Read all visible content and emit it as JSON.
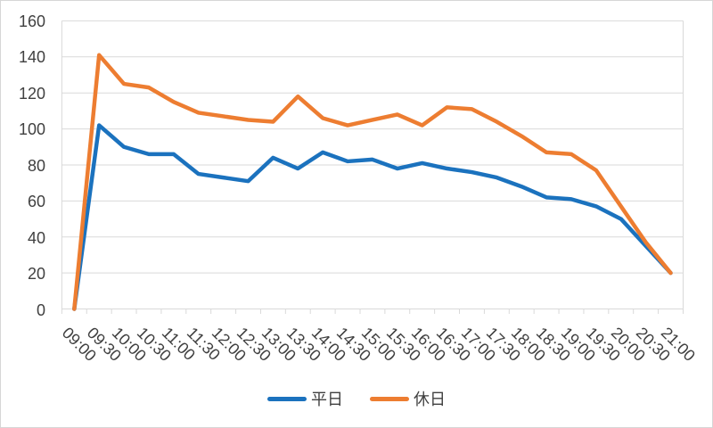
{
  "chart_data": {
    "type": "line",
    "title": "",
    "xlabel": "",
    "ylabel": "",
    "categories": [
      "09:00",
      "09:30",
      "10:00",
      "10:30",
      "11:00",
      "11:30",
      "12:00",
      "12:30",
      "13:00",
      "13:30",
      "14:00",
      "14:30",
      "15:00",
      "15:30",
      "16:00",
      "16:30",
      "17:00",
      "17:30",
      "18:00",
      "18:30",
      "19:00",
      "19:30",
      "20:00",
      "20:30",
      "21:00"
    ],
    "series": [
      {
        "name": "平日",
        "color": "#1B72BE",
        "values": [
          0,
          102,
          90,
          86,
          86,
          75,
          73,
          71,
          84,
          78,
          87,
          82,
          83,
          78,
          81,
          78,
          76,
          73,
          68,
          62,
          61,
          57,
          50,
          35,
          20
        ]
      },
      {
        "name": "休日",
        "color": "#ED7D31",
        "values": [
          0,
          141,
          125,
          123,
          115,
          109,
          107,
          105,
          104,
          118,
          106,
          102,
          105,
          108,
          102,
          112,
          111,
          104,
          96,
          87,
          86,
          77,
          57,
          37,
          20
        ]
      }
    ],
    "ylim": [
      0,
      160
    ],
    "ytick_step": 20,
    "ytick_labels": [
      "0",
      "20",
      "40",
      "60",
      "80",
      "100",
      "120",
      "140",
      "160"
    ],
    "grid": true,
    "gridline_color": "#d9d9d9",
    "axis_label_color": "#404040",
    "legend_position": "bottom",
    "legend_labels": [
      "平日",
      "休日"
    ]
  }
}
